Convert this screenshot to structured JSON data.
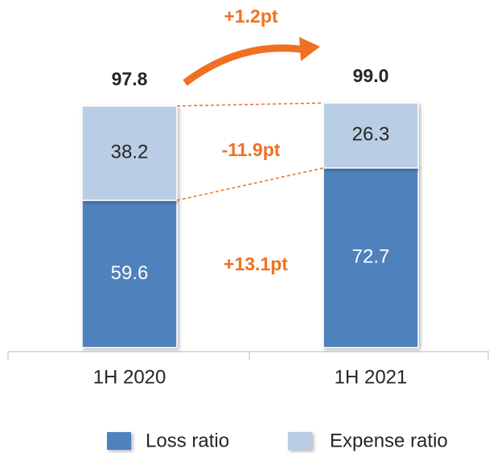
{
  "chart_data": {
    "type": "stacked_bar",
    "categories": [
      "1H 2020",
      "1H 2021"
    ],
    "series": [
      {
        "name": "Loss ratio",
        "color": "#4f81bd",
        "values": [
          59.6,
          72.7
        ]
      },
      {
        "name": "Expense ratio",
        "color": "#b9cde5",
        "values": [
          38.2,
          26.3
        ]
      }
    ],
    "totals": {
      "values": [
        97.8,
        99.0
      ],
      "value_labels": [
        "97.8",
        "99.0"
      ]
    },
    "annotations": [
      "+1.2pt",
      "-11.9pt",
      "+13.1pt"
    ],
    "annotation_color": "#f07022"
  }
}
